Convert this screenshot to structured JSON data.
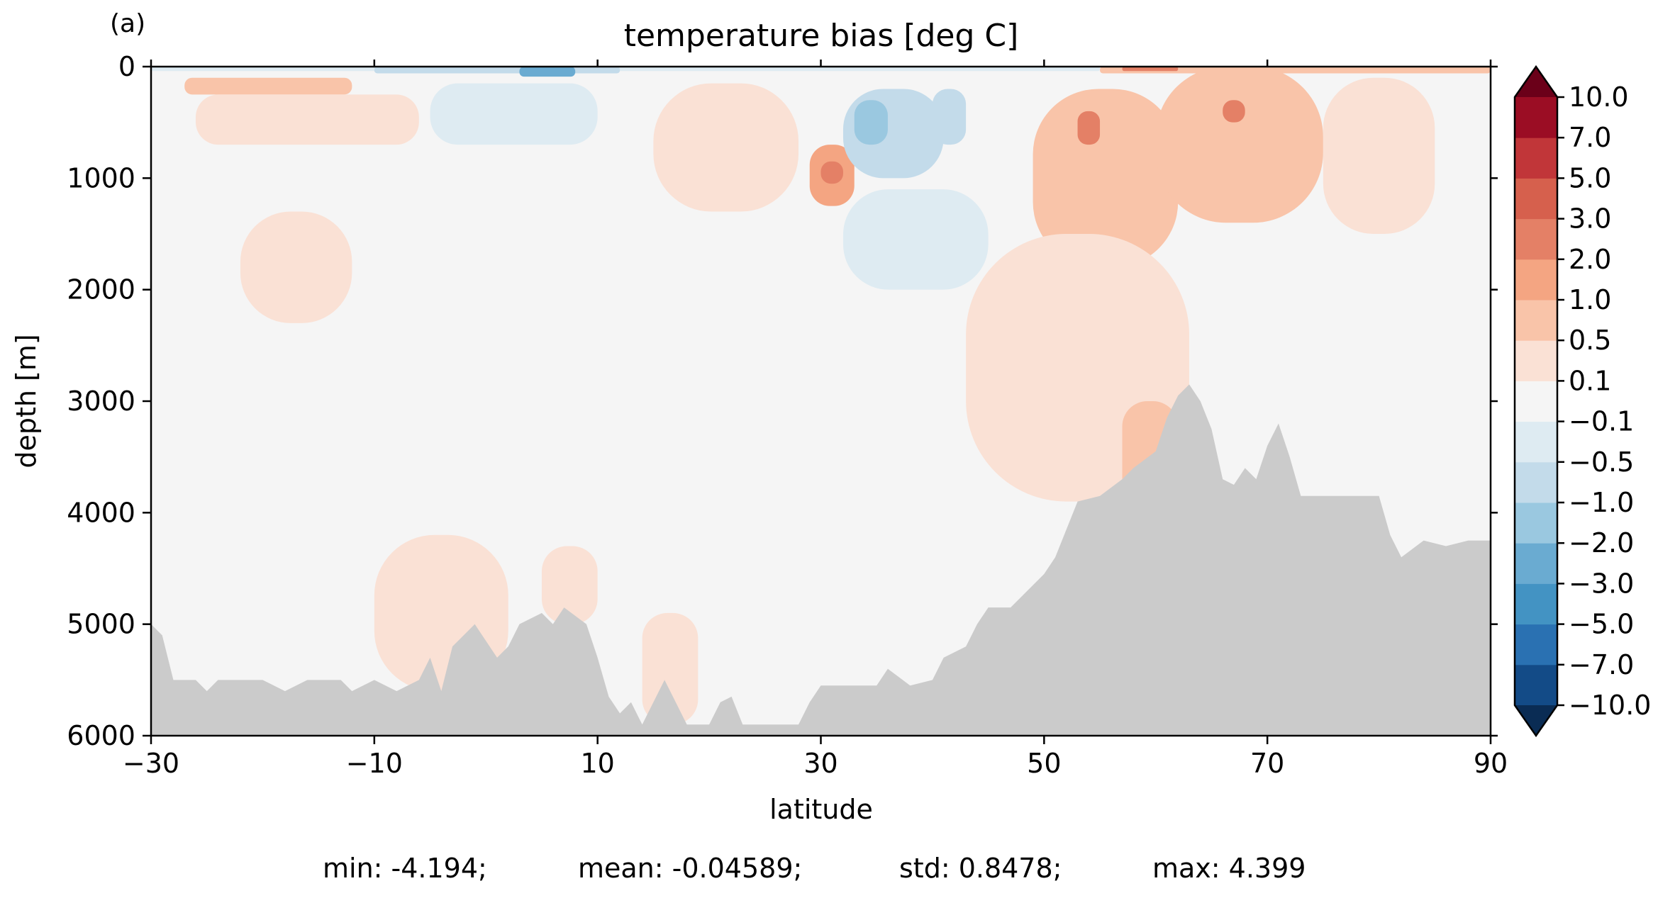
{
  "panel_label": "(a)",
  "chart_data": {
    "type": "heatmap",
    "title": "temperature bias [deg C]",
    "xlabel": "latitude",
    "ylabel": "depth [m]",
    "xlim": [
      -30,
      90
    ],
    "ylim": [
      6000,
      0
    ],
    "y_inverted": true,
    "x_ticks": [
      -30,
      -10,
      10,
      30,
      50,
      70,
      90
    ],
    "x_tick_labels": [
      "−30",
      "−10",
      "10",
      "30",
      "50",
      "70",
      "90"
    ],
    "y_ticks": [
      0,
      1000,
      2000,
      3000,
      4000,
      5000,
      6000
    ],
    "y_tick_labels": [
      "0",
      "1000",
      "2000",
      "3000",
      "4000",
      "5000",
      "6000"
    ],
    "colorbar": {
      "levels": [
        -10.0,
        -7.0,
        -5.0,
        -3.0,
        -2.0,
        -1.0,
        -0.5,
        -0.1,
        0.1,
        0.5,
        1.0,
        2.0,
        3.0,
        5.0,
        7.0,
        10.0
      ],
      "tick_labels": [
        "−10.0",
        "−7.0",
        "−5.0",
        "−3.0",
        "−2.0",
        "−1.0",
        "−0.5",
        "−0.1",
        "0.1",
        "0.5",
        "1.0",
        "2.0",
        "3.0",
        "5.0",
        "7.0",
        "10.0"
      ],
      "colors": [
        "#134b87",
        "#2a71b2",
        "#4393c3",
        "#6aabd1",
        "#9ac8e0",
        "#c3dbea",
        "#deebf2",
        "#f5f5f5",
        "#fae1d5",
        "#f9c4a9",
        "#f4a582",
        "#e48066",
        "#d6604d",
        "#c13639",
        "#9b0d24"
      ],
      "under_color": "#0a2c54",
      "over_color": "#6b0019",
      "extend": "both"
    },
    "land_color": "#cbcbcb",
    "bathymetry_depth_m": [
      [
        -30,
        5000
      ],
      [
        -29,
        5100
      ],
      [
        -28,
        5500
      ],
      [
        -26,
        5500
      ],
      [
        -25,
        5600
      ],
      [
        -24,
        5500
      ],
      [
        -20,
        5500
      ],
      [
        -18,
        5600
      ],
      [
        -16,
        5500
      ],
      [
        -13,
        5500
      ],
      [
        -12,
        5600
      ],
      [
        -10,
        5500
      ],
      [
        -8,
        5600
      ],
      [
        -6,
        5500
      ],
      [
        -5,
        5300
      ],
      [
        -4,
        5600
      ],
      [
        -3,
        5200
      ],
      [
        -1,
        5000
      ],
      [
        1,
        5300
      ],
      [
        2,
        5200
      ],
      [
        3,
        5000
      ],
      [
        5,
        4900
      ],
      [
        6,
        5000
      ],
      [
        7,
        4850
      ],
      [
        9,
        5000
      ],
      [
        10,
        5300
      ],
      [
        11,
        5650
      ],
      [
        12,
        5800
      ],
      [
        13,
        5700
      ],
      [
        14,
        5900
      ],
      [
        15,
        5700
      ],
      [
        16,
        5500
      ],
      [
        17,
        5700
      ],
      [
        18,
        5900
      ],
      [
        20,
        5900
      ],
      [
        21,
        5700
      ],
      [
        22,
        5650
      ],
      [
        23,
        5900
      ],
      [
        28,
        5900
      ],
      [
        29,
        5700
      ],
      [
        30,
        5550
      ],
      [
        35,
        5550
      ],
      [
        36,
        5400
      ],
      [
        38,
        5550
      ],
      [
        40,
        5500
      ],
      [
        41,
        5300
      ],
      [
        43,
        5200
      ],
      [
        44,
        5000
      ],
      [
        45,
        4850
      ],
      [
        47,
        4850
      ],
      [
        48,
        4750
      ],
      [
        49,
        4650
      ],
      [
        50,
        4550
      ],
      [
        51,
        4400
      ],
      [
        52,
        4150
      ],
      [
        53,
        3900
      ],
      [
        55,
        3850
      ],
      [
        57,
        3700
      ],
      [
        58,
        3600
      ],
      [
        60,
        3450
      ],
      [
        61,
        3150
      ],
      [
        62,
        2950
      ],
      [
        63,
        2850
      ],
      [
        64,
        3000
      ],
      [
        65,
        3250
      ],
      [
        66,
        3700
      ],
      [
        67,
        3750
      ],
      [
        68,
        3600
      ],
      [
        69,
        3700
      ],
      [
        70,
        3400
      ],
      [
        71,
        3200
      ],
      [
        72,
        3500
      ],
      [
        73,
        3850
      ],
      [
        80,
        3850
      ],
      [
        81,
        4200
      ],
      [
        82,
        4400
      ],
      [
        84,
        4250
      ],
      [
        86,
        4300
      ],
      [
        88,
        4250
      ],
      [
        90,
        4250
      ]
    ],
    "bias_regions": [
      {
        "lat": [
          -30,
          90
        ],
        "depth": [
          0,
          6000
        ],
        "value": 0.0
      },
      {
        "lat": [
          -30,
          55
        ],
        "depth": [
          0,
          40
        ],
        "value": -0.3
      },
      {
        "lat": [
          -10,
          12
        ],
        "depth": [
          0,
          60
        ],
        "value": -1.0
      },
      {
        "lat": [
          3,
          8
        ],
        "depth": [
          0,
          90
        ],
        "value": -2.5
      },
      {
        "lat": [
          55,
          90
        ],
        "depth": [
          0,
          60
        ],
        "value": 0.8
      },
      {
        "lat": [
          57,
          62
        ],
        "depth": [
          0,
          40
        ],
        "value": 2.5
      },
      {
        "lat": [
          -27,
          -12
        ],
        "depth": [
          100,
          250
        ],
        "value": 0.8
      },
      {
        "lat": [
          -26,
          -6
        ],
        "depth": [
          250,
          700
        ],
        "value": 0.3
      },
      {
        "lat": [
          -5,
          10
        ],
        "depth": [
          150,
          700
        ],
        "value": -0.3
      },
      {
        "lat": [
          15,
          28
        ],
        "depth": [
          150,
          1300
        ],
        "value": 0.3
      },
      {
        "lat": [
          29,
          33
        ],
        "depth": [
          700,
          1250
        ],
        "value": 1.0
      },
      {
        "lat": [
          30,
          32
        ],
        "depth": [
          850,
          1050
        ],
        "value": 2.5
      },
      {
        "lat": [
          32,
          41
        ],
        "depth": [
          200,
          1000
        ],
        "value": -0.8
      },
      {
        "lat": [
          33,
          36
        ],
        "depth": [
          300,
          700
        ],
        "value": -1.5
      },
      {
        "lat": [
          40,
          43
        ],
        "depth": [
          200,
          700
        ],
        "value": -1.0
      },
      {
        "lat": [
          32,
          45
        ],
        "depth": [
          1100,
          2000
        ],
        "value": -0.3
      },
      {
        "lat": [
          49,
          62
        ],
        "depth": [
          200,
          1800
        ],
        "value": 0.8
      },
      {
        "lat": [
          53,
          55
        ],
        "depth": [
          400,
          700
        ],
        "value": 2.5
      },
      {
        "lat": [
          60,
          75
        ],
        "depth": [
          0,
          1400
        ],
        "value": 0.8
      },
      {
        "lat": [
          66,
          68
        ],
        "depth": [
          300,
          500
        ],
        "value": 2.0
      },
      {
        "lat": [
          75,
          85
        ],
        "depth": [
          100,
          1500
        ],
        "value": 0.3
      },
      {
        "lat": [
          43,
          63
        ],
        "depth": [
          1500,
          3900
        ],
        "value": 0.3
      },
      {
        "lat": [
          57,
          62
        ],
        "depth": [
          3000,
          4000
        ],
        "value": 0.8
      },
      {
        "lat": [
          -22,
          -12
        ],
        "depth": [
          1300,
          2300
        ],
        "value": 0.3
      },
      {
        "lat": [
          -10,
          2
        ],
        "depth": [
          4200,
          5600
        ],
        "value": 0.3
      },
      {
        "lat": [
          5,
          10
        ],
        "depth": [
          4300,
          5000
        ],
        "value": 0.3
      },
      {
        "lat": [
          14,
          19
        ],
        "depth": [
          4900,
          5900
        ],
        "value": 0.3
      }
    ]
  },
  "stats": {
    "min": "min: -4.194;",
    "mean": "mean: -0.04589;",
    "std": "std: 0.8478;",
    "max": "max: 4.399"
  }
}
